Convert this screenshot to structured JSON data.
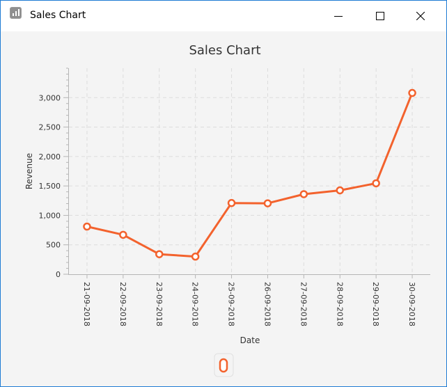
{
  "window": {
    "title": "Sales Chart",
    "icon": "bar-chart-icon",
    "controls": [
      "minimize-icon",
      "maximize-icon",
      "close-icon"
    ]
  },
  "colors": {
    "series": "#f3622d",
    "grid": "#dcdcdc",
    "background": "#f4f4f4",
    "window_border": "#1e7bd4"
  },
  "chart_data": {
    "type": "line",
    "title": "Sales Chart",
    "xlabel": "Date",
    "ylabel": "Revenue",
    "categories": [
      "21-09-2018",
      "22-09-2018",
      "23-09-2018",
      "24-09-2018",
      "25-09-2018",
      "26-09-2018",
      "27-09-2018",
      "28-09-2018",
      "29-09-2018",
      "30-09-2018"
    ],
    "series": [
      {
        "values": [
          810,
          670,
          340,
          300,
          1210,
          1205,
          1360,
          1425,
          1545,
          3080
        ]
      }
    ],
    "ylim": [
      0,
      3500
    ],
    "yticks": [
      0,
      500,
      1000,
      1500,
      2000,
      2500,
      3000
    ],
    "ytick_labels": [
      "0",
      "500",
      "1,000",
      "1,500",
      "2,000",
      "2,500",
      "3,000"
    ],
    "grid": true,
    "legend": "bottom"
  }
}
